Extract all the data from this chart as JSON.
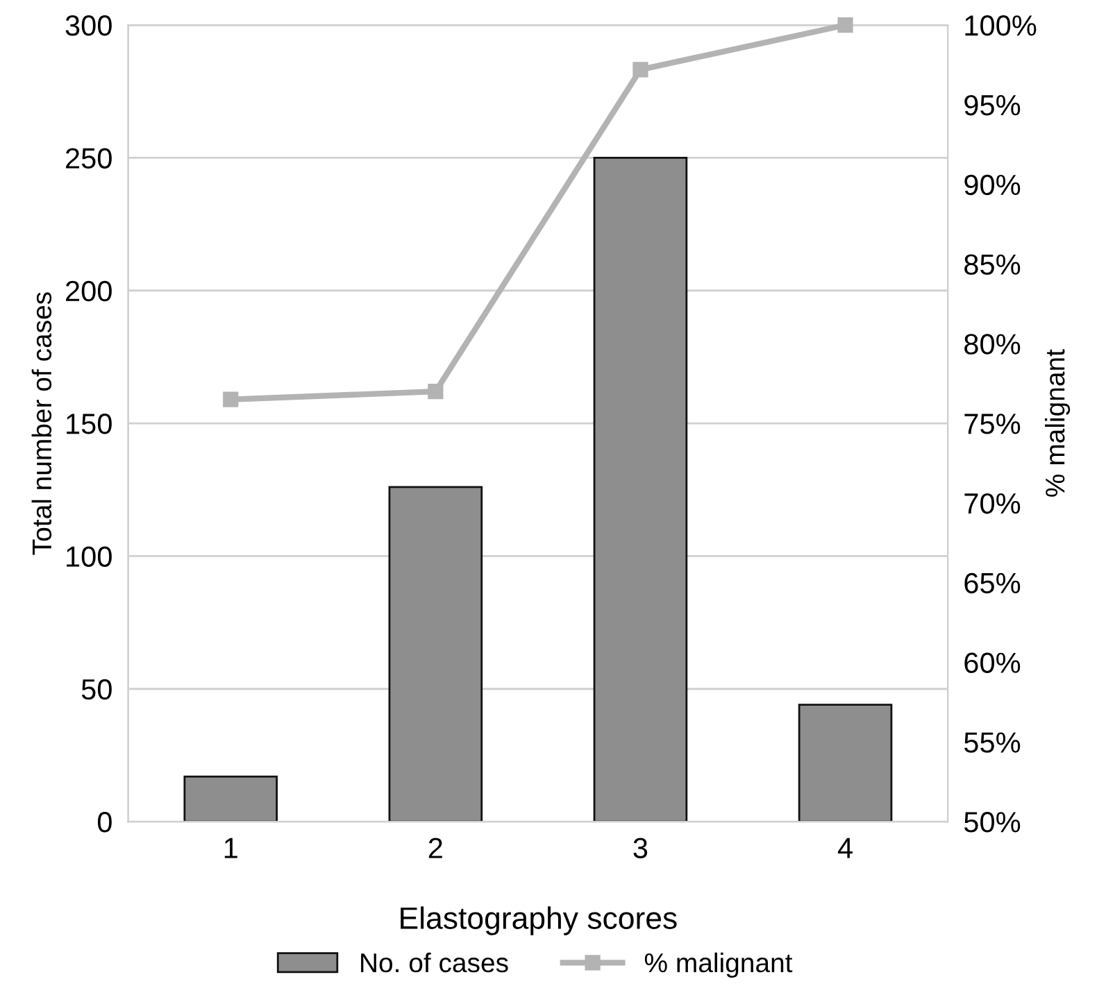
{
  "chart_data": {
    "type": "bar",
    "xlabel": "Elastography scores",
    "ylabel": "Total number of cases",
    "y2label": "% malignant",
    "categories": [
      "1",
      "2",
      "3",
      "4"
    ],
    "series": [
      {
        "name": "No. of cases",
        "color": "#8e8e8e",
        "values": [
          17,
          126,
          250,
          44
        ]
      },
      {
        "name": "% malignant",
        "type": "line",
        "axis": "y2",
        "color": "#b3b3b3",
        "marker": "square",
        "values": [
          76.5,
          77.0,
          97.2,
          100
        ]
      }
    ],
    "ylim": [
      0,
      300
    ],
    "yticks": [
      0,
      50,
      100,
      150,
      200,
      250,
      300
    ],
    "y2lim": [
      50,
      100
    ],
    "y2ticks": [
      {
        "value": 50,
        "label": "50%"
      },
      {
        "value": 55,
        "label": "55%"
      },
      {
        "value": 60,
        "label": "60%"
      },
      {
        "value": 65,
        "label": "65%"
      },
      {
        "value": 70,
        "label": "70%"
      },
      {
        "value": 75,
        "label": "75%"
      },
      {
        "value": 80,
        "label": "80%"
      },
      {
        "value": 85,
        "label": "85%"
      },
      {
        "value": 90,
        "label": "90%"
      },
      {
        "value": 95,
        "label": "95%"
      },
      {
        "value": 100,
        "label": "100%"
      }
    ],
    "grid": "y",
    "legend": "bottom"
  }
}
